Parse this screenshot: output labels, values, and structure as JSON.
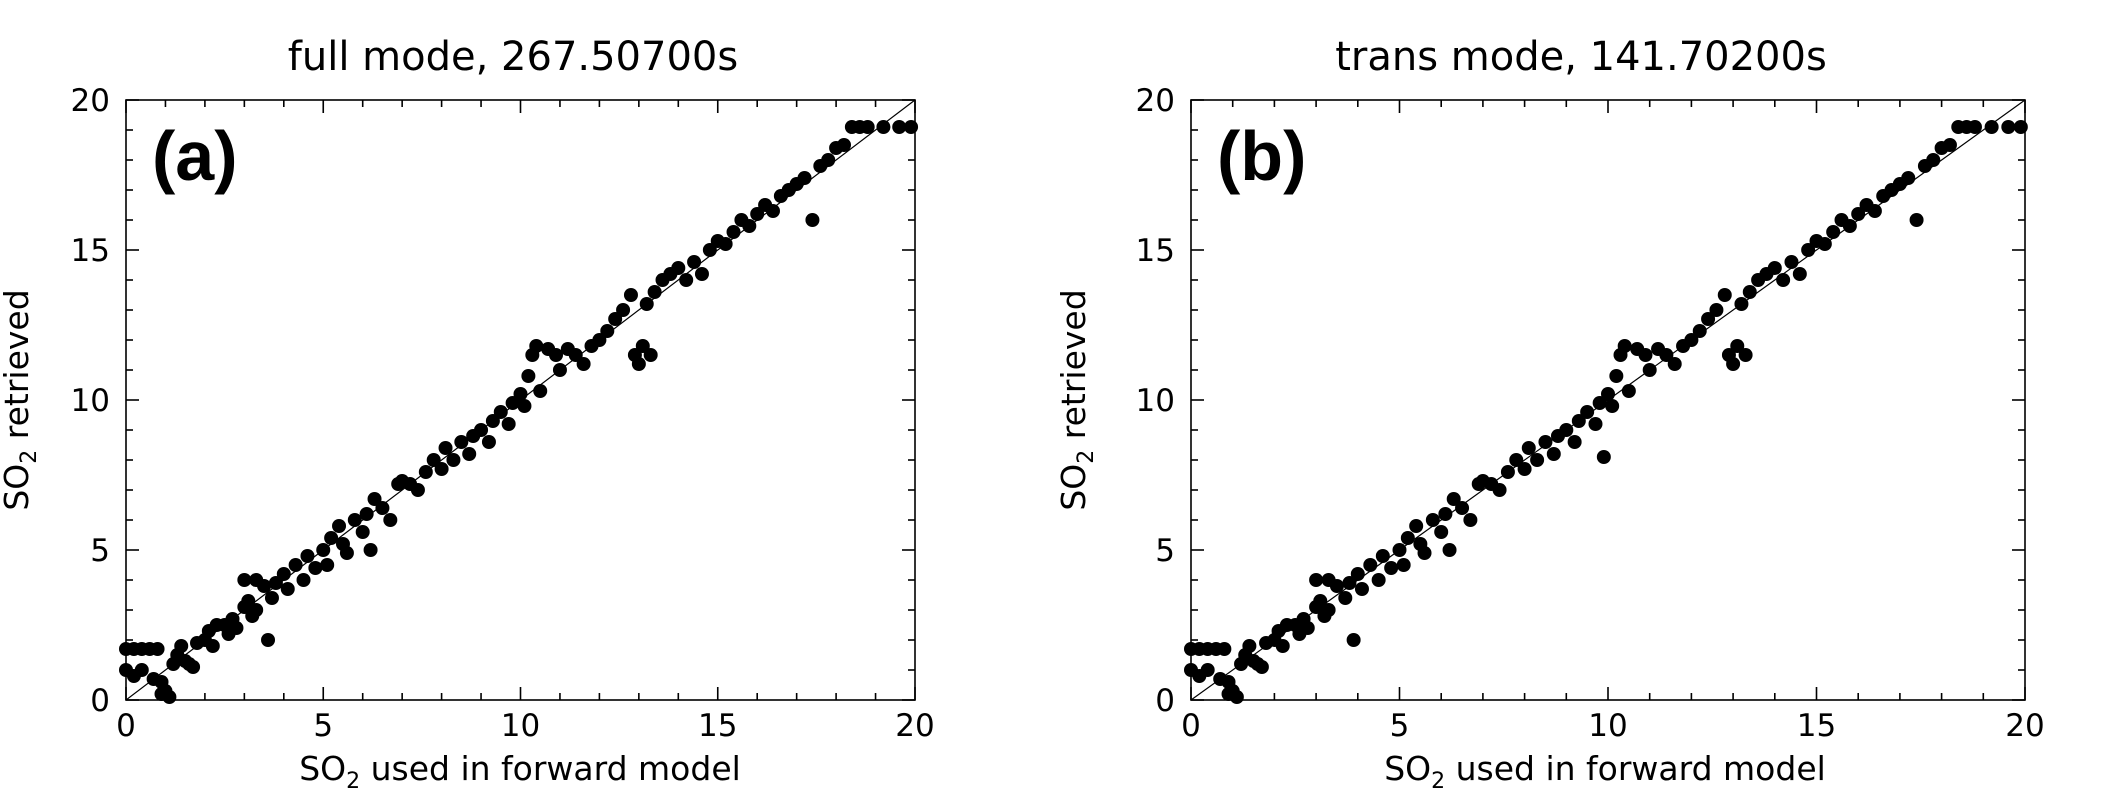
{
  "chart_data": [
    {
      "type": "scatter",
      "panel_label": "(a)",
      "title": "full mode, 267.50700s",
      "xlabel_pre": "SO",
      "xlabel_sub": "2",
      "xlabel_post": " used in forward model",
      "ylabel_pre": "SO",
      "ylabel_sub": "2",
      "ylabel_post": " retrieved",
      "xlim": [
        0,
        20
      ],
      "ylim": [
        0,
        20
      ],
      "xticks": [
        "0",
        "5",
        "10",
        "15",
        "20"
      ],
      "yticks": [
        "0",
        "5",
        "10",
        "15",
        "20"
      ],
      "reference_line": "y = x",
      "grid": false,
      "points": [
        [
          0.0,
          1.0
        ],
        [
          0.2,
          0.8
        ],
        [
          0.0,
          1.7
        ],
        [
          0.2,
          1.7
        ],
        [
          0.4,
          1.7
        ],
        [
          0.6,
          1.7
        ],
        [
          0.8,
          1.7
        ],
        [
          0.4,
          1.0
        ],
        [
          0.7,
          0.7
        ],
        [
          0.9,
          0.6
        ],
        [
          1.0,
          0.3
        ],
        [
          1.1,
          0.1
        ],
        [
          0.9,
          0.2
        ],
        [
          1.2,
          1.2
        ],
        [
          1.3,
          1.5
        ],
        [
          1.4,
          1.8
        ],
        [
          1.5,
          1.3
        ],
        [
          1.6,
          1.2
        ],
        [
          1.7,
          1.1
        ],
        [
          1.8,
          1.9
        ],
        [
          2.0,
          2.0
        ],
        [
          2.1,
          2.3
        ],
        [
          2.2,
          1.8
        ],
        [
          2.3,
          2.5
        ],
        [
          2.5,
          2.5
        ],
        [
          2.6,
          2.2
        ],
        [
          2.7,
          2.7
        ],
        [
          2.8,
          2.4
        ],
        [
          3.0,
          3.1
        ],
        [
          3.1,
          3.3
        ],
        [
          3.2,
          2.8
        ],
        [
          3.3,
          3.0
        ],
        [
          3.0,
          4.0
        ],
        [
          3.3,
          4.0
        ],
        [
          3.5,
          3.8
        ],
        [
          3.7,
          3.4
        ],
        [
          3.8,
          3.9
        ],
        [
          3.6,
          2.0
        ],
        [
          4.0,
          4.2
        ],
        [
          4.1,
          3.7
        ],
        [
          4.3,
          4.5
        ],
        [
          4.5,
          4.0
        ],
        [
          4.6,
          4.8
        ],
        [
          4.8,
          4.4
        ],
        [
          5.0,
          5.0
        ],
        [
          5.1,
          4.5
        ],
        [
          5.2,
          5.4
        ],
        [
          5.4,
          5.8
        ],
        [
          5.5,
          5.2
        ],
        [
          5.6,
          4.9
        ],
        [
          5.8,
          6.0
        ],
        [
          6.0,
          5.6
        ],
        [
          6.1,
          6.2
        ],
        [
          6.2,
          5.0
        ],
        [
          6.3,
          6.7
        ],
        [
          6.5,
          6.4
        ],
        [
          6.7,
          6.0
        ],
        [
          6.9,
          7.2
        ],
        [
          7.0,
          7.3
        ],
        [
          7.2,
          7.2
        ],
        [
          7.4,
          7.0
        ],
        [
          7.6,
          7.6
        ],
        [
          7.8,
          8.0
        ],
        [
          8.0,
          7.7
        ],
        [
          8.1,
          8.4
        ],
        [
          8.3,
          8.0
        ],
        [
          8.5,
          8.6
        ],
        [
          8.7,
          8.2
        ],
        [
          8.8,
          8.8
        ],
        [
          9.0,
          9.0
        ],
        [
          9.2,
          8.6
        ],
        [
          9.3,
          9.3
        ],
        [
          9.5,
          9.6
        ],
        [
          9.7,
          9.2
        ],
        [
          9.8,
          9.9
        ],
        [
          10.0,
          10.2
        ],
        [
          10.1,
          9.8
        ],
        [
          10.2,
          10.8
        ],
        [
          10.3,
          11.5
        ],
        [
          10.4,
          11.8
        ],
        [
          10.5,
          10.3
        ],
        [
          10.7,
          11.7
        ],
        [
          10.9,
          11.5
        ],
        [
          11.0,
          11.0
        ],
        [
          11.2,
          11.7
        ],
        [
          11.4,
          11.5
        ],
        [
          11.6,
          11.2
        ],
        [
          11.8,
          11.8
        ],
        [
          12.0,
          12.0
        ],
        [
          12.2,
          12.3
        ],
        [
          12.4,
          12.7
        ],
        [
          12.6,
          13.0
        ],
        [
          12.8,
          13.5
        ],
        [
          12.9,
          11.5
        ],
        [
          13.0,
          11.2
        ],
        [
          13.1,
          11.8
        ],
        [
          13.3,
          11.5
        ],
        [
          13.2,
          13.2
        ],
        [
          13.4,
          13.6
        ],
        [
          13.6,
          14.0
        ],
        [
          13.8,
          14.2
        ],
        [
          14.0,
          14.4
        ],
        [
          14.2,
          14.0
        ],
        [
          14.4,
          14.6
        ],
        [
          14.6,
          14.2
        ],
        [
          14.8,
          15.0
        ],
        [
          15.0,
          15.3
        ],
        [
          15.2,
          15.2
        ],
        [
          15.4,
          15.6
        ],
        [
          15.6,
          16.0
        ],
        [
          15.8,
          15.8
        ],
        [
          16.0,
          16.2
        ],
        [
          16.2,
          16.5
        ],
        [
          16.4,
          16.3
        ],
        [
          16.6,
          16.8
        ],
        [
          16.8,
          17.0
        ],
        [
          17.0,
          17.2
        ],
        [
          17.2,
          17.4
        ],
        [
          17.4,
          16.0
        ],
        [
          17.6,
          17.8
        ],
        [
          17.8,
          18.0
        ],
        [
          18.0,
          18.4
        ],
        [
          18.2,
          18.5
        ],
        [
          18.4,
          19.1
        ],
        [
          18.6,
          19.1
        ],
        [
          18.8,
          19.1
        ],
        [
          19.2,
          19.1
        ],
        [
          19.6,
          19.1
        ],
        [
          19.9,
          19.1
        ]
      ]
    },
    {
      "type": "scatter",
      "panel_label": "(b)",
      "title": "trans mode, 141.70200s",
      "xlabel_pre": "SO",
      "xlabel_sub": "2",
      "xlabel_post": " used in forward model",
      "ylabel_pre": "SO",
      "ylabel_sub": "2",
      "ylabel_post": " retrieved",
      "xlim": [
        0,
        20
      ],
      "ylim": [
        0,
        20
      ],
      "xticks": [
        "0",
        "5",
        "10",
        "15",
        "20"
      ],
      "yticks": [
        "0",
        "5",
        "10",
        "15",
        "20"
      ],
      "reference_line": "y = x",
      "grid": false,
      "points": [
        [
          0.0,
          1.0
        ],
        [
          0.2,
          0.8
        ],
        [
          0.0,
          1.7
        ],
        [
          0.2,
          1.7
        ],
        [
          0.4,
          1.7
        ],
        [
          0.6,
          1.7
        ],
        [
          0.8,
          1.7
        ],
        [
          0.4,
          1.0
        ],
        [
          0.7,
          0.7
        ],
        [
          0.9,
          0.6
        ],
        [
          1.0,
          0.3
        ],
        [
          1.1,
          0.1
        ],
        [
          0.9,
          0.2
        ],
        [
          1.2,
          1.2
        ],
        [
          1.3,
          1.5
        ],
        [
          1.4,
          1.8
        ],
        [
          1.5,
          1.3
        ],
        [
          1.6,
          1.2
        ],
        [
          1.7,
          1.1
        ],
        [
          1.8,
          1.9
        ],
        [
          2.0,
          2.0
        ],
        [
          2.1,
          2.3
        ],
        [
          2.2,
          1.8
        ],
        [
          2.3,
          2.5
        ],
        [
          2.5,
          2.5
        ],
        [
          2.6,
          2.2
        ],
        [
          2.7,
          2.7
        ],
        [
          2.8,
          2.4
        ],
        [
          3.0,
          3.1
        ],
        [
          3.1,
          3.3
        ],
        [
          3.2,
          2.8
        ],
        [
          3.3,
          3.0
        ],
        [
          3.0,
          4.0
        ],
        [
          3.3,
          4.0
        ],
        [
          3.5,
          3.8
        ],
        [
          3.7,
          3.4
        ],
        [
          3.8,
          3.9
        ],
        [
          3.9,
          2.0
        ],
        [
          4.0,
          4.2
        ],
        [
          4.1,
          3.7
        ],
        [
          4.3,
          4.5
        ],
        [
          4.5,
          4.0
        ],
        [
          4.6,
          4.8
        ],
        [
          4.8,
          4.4
        ],
        [
          5.0,
          5.0
        ],
        [
          5.1,
          4.5
        ],
        [
          5.2,
          5.4
        ],
        [
          5.4,
          5.8
        ],
        [
          5.5,
          5.2
        ],
        [
          5.6,
          4.9
        ],
        [
          5.8,
          6.0
        ],
        [
          6.0,
          5.6
        ],
        [
          6.1,
          6.2
        ],
        [
          6.2,
          5.0
        ],
        [
          6.3,
          6.7
        ],
        [
          6.5,
          6.4
        ],
        [
          6.7,
          6.0
        ],
        [
          6.9,
          7.2
        ],
        [
          7.0,
          7.3
        ],
        [
          7.2,
          7.2
        ],
        [
          7.4,
          7.0
        ],
        [
          7.6,
          7.6
        ],
        [
          7.8,
          8.0
        ],
        [
          8.0,
          7.7
        ],
        [
          8.1,
          8.4
        ],
        [
          8.3,
          8.0
        ],
        [
          8.5,
          8.6
        ],
        [
          8.7,
          8.2
        ],
        [
          8.8,
          8.8
        ],
        [
          9.0,
          9.0
        ],
        [
          9.2,
          8.6
        ],
        [
          9.3,
          9.3
        ],
        [
          9.5,
          9.6
        ],
        [
          9.7,
          9.2
        ],
        [
          9.8,
          9.9
        ],
        [
          9.9,
          8.1
        ],
        [
          10.0,
          10.2
        ],
        [
          10.1,
          9.8
        ],
        [
          10.2,
          10.8
        ],
        [
          10.3,
          11.5
        ],
        [
          10.4,
          11.8
        ],
        [
          10.5,
          10.3
        ],
        [
          10.7,
          11.7
        ],
        [
          10.9,
          11.5
        ],
        [
          11.0,
          11.0
        ],
        [
          11.2,
          11.7
        ],
        [
          11.4,
          11.5
        ],
        [
          11.6,
          11.2
        ],
        [
          11.8,
          11.8
        ],
        [
          12.0,
          12.0
        ],
        [
          12.2,
          12.3
        ],
        [
          12.4,
          12.7
        ],
        [
          12.6,
          13.0
        ],
        [
          12.8,
          13.5
        ],
        [
          12.9,
          11.5
        ],
        [
          13.0,
          11.2
        ],
        [
          13.1,
          11.8
        ],
        [
          13.3,
          11.5
        ],
        [
          13.2,
          13.2
        ],
        [
          13.4,
          13.6
        ],
        [
          13.6,
          14.0
        ],
        [
          13.8,
          14.2
        ],
        [
          14.0,
          14.4
        ],
        [
          14.2,
          14.0
        ],
        [
          14.4,
          14.6
        ],
        [
          14.6,
          14.2
        ],
        [
          14.8,
          15.0
        ],
        [
          15.0,
          15.3
        ],
        [
          15.2,
          15.2
        ],
        [
          15.4,
          15.6
        ],
        [
          15.6,
          16.0
        ],
        [
          15.8,
          15.8
        ],
        [
          16.0,
          16.2
        ],
        [
          16.2,
          16.5
        ],
        [
          16.4,
          16.3
        ],
        [
          16.6,
          16.8
        ],
        [
          16.8,
          17.0
        ],
        [
          17.0,
          17.2
        ],
        [
          17.2,
          17.4
        ],
        [
          17.4,
          16.0
        ],
        [
          17.6,
          17.8
        ],
        [
          17.8,
          18.0
        ],
        [
          18.0,
          18.4
        ],
        [
          18.2,
          18.5
        ],
        [
          18.4,
          19.1
        ],
        [
          18.6,
          19.1
        ],
        [
          18.8,
          19.1
        ],
        [
          19.2,
          19.1
        ],
        [
          19.6,
          19.1
        ],
        [
          19.9,
          19.1
        ]
      ]
    }
  ]
}
